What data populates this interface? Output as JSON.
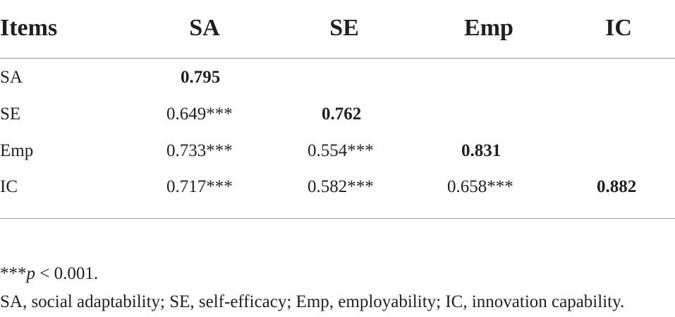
{
  "table": {
    "headers": [
      "Items",
      "SA",
      "SE",
      "Emp",
      "IC"
    ],
    "rows": [
      {
        "label": "SA",
        "values": [
          "0.795",
          "",
          "",
          ""
        ]
      },
      {
        "label": "SE",
        "values": [
          "0.649***",
          "0.762",
          "",
          ""
        ]
      },
      {
        "label": "Emp",
        "values": [
          "0.733***",
          "0.554***",
          "0.831",
          ""
        ]
      },
      {
        "label": "IC",
        "values": [
          "0.717***",
          "0.582***",
          "0.658***",
          "0.882"
        ]
      }
    ]
  },
  "footnotes": {
    "stars": "***",
    "p_var": "p",
    "p_rest": " < 0.001.",
    "abbreviations": "SA, social adaptability; SE, self-efficacy; Emp, employability; IC, innovation capability."
  }
}
